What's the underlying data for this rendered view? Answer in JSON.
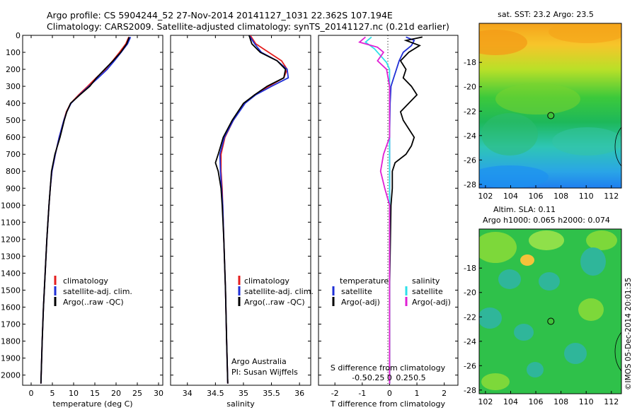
{
  "header": {
    "line1": "Argo profile: CS 5904244_52 27-Nov-2014 20141127_1031 22.362S 107.194E",
    "line2": "Climatology: CARS2009. Satellite-adjusted climatology: synTS_20141127.nc (0.21d earlier)"
  },
  "credit": "©IMOS 05-Dec-2014 20:01:35",
  "colors": {
    "climatology": "#e41e1e",
    "satellite": "#1f2fd6",
    "argo": "#000000",
    "sat_diff": "#1f2fd6",
    "argo_t_diff": "#000000",
    "sal_sat": "#2ee0e8",
    "sal_argo": "#e01fd4"
  },
  "chart_data": [
    {
      "type": "line",
      "name": "temperature-profile",
      "xlabel": "temperature (deg C)",
      "ylabel": "",
      "xlim": [
        -2,
        31
      ],
      "ylim": [
        2060,
        0
      ],
      "xticks": [
        0,
        5,
        10,
        15,
        20,
        25,
        30
      ],
      "yticks": [
        0,
        100,
        200,
        300,
        400,
        500,
        600,
        700,
        800,
        900,
        1000,
        1100,
        1200,
        1300,
        1400,
        1500,
        1600,
        1700,
        1800,
        1900,
        2000
      ],
      "legend": [
        "climatology",
        "satellite-adj. clim.",
        "Argo(..raw -QC)"
      ],
      "series": [
        {
          "name": "climatology",
          "color": "#e41e1e",
          "depth": [
            10,
            50,
            100,
            150,
            200,
            250,
            300,
            350,
            400,
            450,
            500,
            600,
            700,
            800,
            900,
            1000,
            1200,
            1400,
            1600,
            1800,
            2050
          ],
          "values": [
            23.0,
            22.3,
            20.8,
            19.2,
            17.5,
            15.3,
            13.3,
            11.2,
            9.3,
            8.3,
            7.7,
            6.6,
            5.7,
            4.9,
            4.5,
            4.2,
            3.7,
            3.3,
            2.9,
            2.6,
            2.3
          ]
        },
        {
          "name": "satellite-adj. clim.",
          "color": "#1f2fd6",
          "depth": [
            10,
            50,
            100,
            150,
            200,
            250,
            300,
            350,
            400,
            450,
            500,
            600,
            700,
            800,
            900,
            1000,
            1200,
            1400,
            1600,
            1800,
            2050
          ],
          "values": [
            23.4,
            22.7,
            21.2,
            19.6,
            17.9,
            15.8,
            13.6,
            11.4,
            9.4,
            8.4,
            7.7,
            6.6,
            5.7,
            4.9,
            4.5,
            4.2,
            3.7,
            3.3,
            2.9,
            2.6,
            2.3
          ]
        },
        {
          "name": "Argo(..raw -QC)",
          "color": "#000000",
          "depth": [
            10,
            50,
            100,
            150,
            200,
            250,
            300,
            350,
            400,
            450,
            500,
            600,
            700,
            800,
            900,
            1000,
            1200,
            1400,
            1600,
            1800,
            2050
          ],
          "values": [
            23.1,
            22.5,
            21.1,
            19.3,
            17.3,
            15.4,
            13.8,
            11.5,
            9.3,
            8.4,
            7.8,
            6.8,
            5.6,
            4.8,
            4.5,
            4.2,
            3.7,
            3.3,
            2.9,
            2.6,
            2.3
          ]
        }
      ]
    },
    {
      "type": "line",
      "name": "salinity-profile",
      "xlabel": "salinity",
      "xlim": [
        33.7,
        36.2
      ],
      "ylim": [
        2060,
        0
      ],
      "xticks": [
        34,
        34.5,
        35,
        35.5,
        36
      ],
      "legend": [
        "climatology",
        "satellite-adj. clim.",
        "Argo(..raw -QC)"
      ],
      "annotation": [
        "Argo Australia",
        "PI: Susan Wijffels"
      ],
      "series": [
        {
          "name": "climatology",
          "color": "#e41e1e",
          "depth": [
            0,
            50,
            100,
            150,
            200,
            250,
            300,
            350,
            400,
            500,
            600,
            700,
            800,
            900,
            1000,
            1200,
            1500,
            1800,
            2050
          ],
          "values": [
            35.12,
            35.22,
            35.45,
            35.68,
            35.78,
            35.72,
            35.45,
            35.2,
            35.02,
            34.82,
            34.67,
            34.6,
            34.6,
            34.62,
            34.63,
            34.65,
            34.68,
            34.7,
            34.72
          ]
        },
        {
          "name": "satellite-adj. clim.",
          "color": "#1f2fd6",
          "depth": [
            0,
            50,
            100,
            150,
            200,
            250,
            300,
            350,
            400,
            500,
            600,
            700,
            800,
            900,
            1000,
            1200,
            1500,
            1800,
            2050
          ],
          "values": [
            35.1,
            35.2,
            35.32,
            35.6,
            35.78,
            35.8,
            35.5,
            35.22,
            35.03,
            34.82,
            34.66,
            34.58,
            34.59,
            34.61,
            34.63,
            34.65,
            34.68,
            34.7,
            34.72
          ]
        },
        {
          "name": "Argo(..raw -QC)",
          "color": "#000000",
          "depth": [
            0,
            50,
            100,
            150,
            200,
            250,
            300,
            350,
            400,
            500,
            600,
            700,
            750,
            800,
            900,
            1000,
            1200,
            1500,
            1800,
            2050
          ],
          "values": [
            35.1,
            35.15,
            35.3,
            35.6,
            35.75,
            35.72,
            35.42,
            35.2,
            35.0,
            34.8,
            34.64,
            34.55,
            34.5,
            34.55,
            34.6,
            34.62,
            34.65,
            34.68,
            34.7,
            34.72
          ]
        }
      ]
    },
    {
      "type": "line",
      "name": "difference-profile",
      "xlabel": "T difference from climatology",
      "xlabel_top": "S difference from climatology",
      "xlim": [
        -2.6,
        2.5
      ],
      "ylim": [
        2060,
        0
      ],
      "xticks": [
        -2,
        -1,
        0,
        1,
        2
      ],
      "xticks_top": [
        "-0.5",
        "-0.25",
        "0",
        "0.25",
        "0.5"
      ],
      "legend": {
        "temperature_title": "temperature",
        "salinity_title": "salinity",
        "temperature": [
          "satellite",
          "Argo(-adj)"
        ],
        "salinity": [
          "satellite",
          "Argo(-adj)"
        ]
      },
      "series": [
        {
          "name": "T satellite",
          "color": "#1f2fd6",
          "depth": [
            10,
            30,
            60,
            100,
            150,
            200,
            250,
            300,
            400,
            600,
            800,
            1000,
            1500,
            2050
          ],
          "values": [
            0.6,
            0.9,
            0.8,
            0.5,
            0.35,
            0.25,
            0.15,
            0.05,
            0.02,
            0.0,
            0.0,
            0.0,
            0.0,
            0.0
          ]
        },
        {
          "name": "T Argo(-adj)",
          "color": "#000000",
          "depth": [
            10,
            30,
            60,
            100,
            150,
            200,
            250,
            300,
            350,
            400,
            450,
            500,
            550,
            600,
            650,
            700,
            750,
            800,
            900,
            1000,
            1500,
            2050
          ],
          "values": [
            1.2,
            0.6,
            1.1,
            0.7,
            0.4,
            0.6,
            0.5,
            0.8,
            1.0,
            0.7,
            0.4,
            0.5,
            0.7,
            0.9,
            0.8,
            0.6,
            0.2,
            0.1,
            0.1,
            0.05,
            0.0,
            0.0
          ]
        },
        {
          "name": "S satellite",
          "color": "#2ee0e8",
          "depth": [
            10,
            40,
            80,
            120,
            160,
            200,
            250,
            300,
            400,
            600,
            800,
            1000,
            1500,
            2050
          ],
          "values": [
            -0.3,
            -0.4,
            -0.25,
            -0.15,
            -0.05,
            0.0,
            0.0,
            0.0,
            0.0,
            0.0,
            0.0,
            0.0,
            0.0,
            0.0
          ]
        },
        {
          "name": "S Argo(-adj)",
          "color": "#e01fd4",
          "depth": [
            10,
            40,
            70,
            100,
            150,
            200,
            300,
            400,
            500,
            600,
            700,
            800,
            900,
            1000,
            1500,
            2050
          ],
          "values": [
            -0.4,
            -0.5,
            -0.2,
            -0.1,
            -0.2,
            -0.05,
            0.0,
            0.0,
            0.0,
            0.0,
            -0.1,
            -0.15,
            -0.08,
            0.0,
            0.0,
            0.0
          ]
        }
      ]
    },
    {
      "type": "heatmap",
      "name": "sst-map",
      "title": "sat. SST: 23.2  Argo: 23.5",
      "xlim": [
        101.5,
        112.8
      ],
      "ylim": [
        -28.3,
        -14.8
      ],
      "xticks": [
        102,
        104,
        106,
        108,
        110,
        112
      ],
      "yticks": [
        -18,
        -20,
        -22,
        -24,
        -26,
        -28
      ],
      "marker": {
        "lon": 107.194,
        "lat": -22.362
      }
    },
    {
      "type": "heatmap",
      "name": "sla-map",
      "title": "Altim. SLA: 0.11",
      "subtitle": "Argo h1000: 0.065 h2000: 0.074",
      "xlim": [
        101.5,
        112.8
      ],
      "ylim": [
        -28.3,
        -14.8
      ],
      "xticks": [
        102,
        104,
        106,
        108,
        110,
        112
      ],
      "yticks": [
        -18,
        -20,
        -22,
        -24,
        -26,
        -28
      ],
      "marker": {
        "lon": 107.194,
        "lat": -22.362
      }
    }
  ]
}
